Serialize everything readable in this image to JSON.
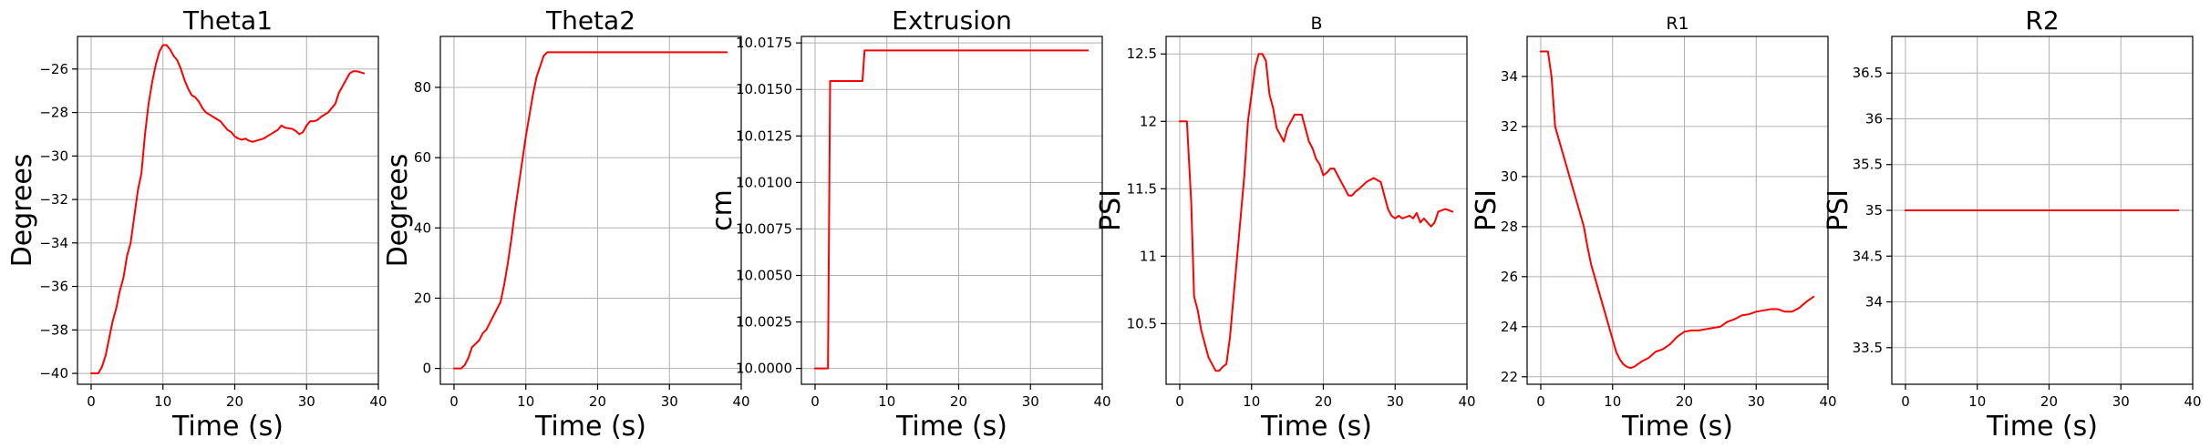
{
  "colors": {
    "line": "#ff0000",
    "grid": "#b0b0b0",
    "axes": "#000000"
  },
  "chart_data": [
    {
      "type": "line",
      "title": "Theta1",
      "xlabel": "Time (s)",
      "ylabel": "Degrees",
      "grid": true,
      "xlim": [
        -1.9,
        40
      ],
      "ylim": [
        -40.5,
        -24.5
      ],
      "xticks": [
        0,
        10,
        20,
        30,
        40
      ],
      "yticks": [
        -40,
        -38,
        -36,
        -34,
        -32,
        -30,
        -28,
        -26
      ],
      "series": [
        {
          "values": [
            [
              0,
              -40
            ],
            [
              1,
              -40
            ],
            [
              1.5,
              -39.7
            ],
            [
              2,
              -39.2
            ],
            [
              2.5,
              -38.4
            ],
            [
              3,
              -37.6
            ],
            [
              3.5,
              -37
            ],
            [
              4,
              -36.2
            ],
            [
              4.5,
              -35.6
            ],
            [
              5,
              -34.6
            ],
            [
              5.5,
              -34
            ],
            [
              6,
              -32.8
            ],
            [
              6.5,
              -31.6
            ],
            [
              7,
              -30.8
            ],
            [
              7.5,
              -29
            ],
            [
              8,
              -27.6
            ],
            [
              8.5,
              -26.6
            ],
            [
              9,
              -25.8
            ],
            [
              9.5,
              -25.2
            ],
            [
              10,
              -24.9
            ],
            [
              10.5,
              -24.9
            ],
            [
              11,
              -25.1
            ],
            [
              11.5,
              -25.4
            ],
            [
              12,
              -25.6
            ],
            [
              12.5,
              -26
            ],
            [
              13,
              -26.5
            ],
            [
              13.5,
              -26.9
            ],
            [
              14,
              -27.2
            ],
            [
              14.5,
              -27.3
            ],
            [
              15,
              -27.5
            ],
            [
              15.5,
              -27.8
            ],
            [
              16,
              -28
            ],
            [
              16.5,
              -28.1
            ],
            [
              17,
              -28.2
            ],
            [
              17.5,
              -28.3
            ],
            [
              18,
              -28.4
            ],
            [
              18.5,
              -28.6
            ],
            [
              19,
              -28.8
            ],
            [
              19.5,
              -28.9
            ],
            [
              20,
              -29.1
            ],
            [
              20.5,
              -29.2
            ],
            [
              21,
              -29.25
            ],
            [
              21.5,
              -29.2
            ],
            [
              22,
              -29.3
            ],
            [
              22.5,
              -29.35
            ],
            [
              23,
              -29.3
            ],
            [
              24,
              -29.2
            ],
            [
              25,
              -29.0
            ],
            [
              26,
              -28.8
            ],
            [
              26.5,
              -28.6
            ],
            [
              27,
              -28.7
            ],
            [
              28,
              -28.75
            ],
            [
              28.5,
              -28.85
            ],
            [
              29,
              -29
            ],
            [
              29.5,
              -28.9
            ],
            [
              30,
              -28.6
            ],
            [
              30.5,
              -28.4
            ],
            [
              31,
              -28.4
            ],
            [
              31.5,
              -28.35
            ],
            [
              32,
              -28.2
            ],
            [
              33,
              -28.0
            ],
            [
              34,
              -27.6
            ],
            [
              34.5,
              -27.1
            ],
            [
              35,
              -26.8
            ],
            [
              35.5,
              -26.5
            ],
            [
              36,
              -26.2
            ],
            [
              36.5,
              -26.1
            ],
            [
              37,
              -26.1
            ],
            [
              38,
              -26.2
            ]
          ]
        }
      ]
    },
    {
      "type": "line",
      "title": "Theta2",
      "xlabel": "Time (s)",
      "ylabel": "Degrees",
      "grid": true,
      "xlim": [
        -1.9,
        40
      ],
      "ylim": [
        -4.5,
        94.5
      ],
      "xticks": [
        0,
        10,
        20,
        30,
        40
      ],
      "yticks": [
        0,
        20,
        40,
        60,
        80
      ],
      "series": [
        {
          "values": [
            [
              0,
              0
            ],
            [
              1,
              0
            ],
            [
              1.5,
              1
            ],
            [
              2,
              3
            ],
            [
              2.5,
              6
            ],
            [
              3,
              7
            ],
            [
              3.5,
              8
            ],
            [
              4,
              10
            ],
            [
              4.5,
              11
            ],
            [
              5,
              13
            ],
            [
              5.5,
              15
            ],
            [
              6,
              17
            ],
            [
              6.5,
              19
            ],
            [
              7,
              24
            ],
            [
              7.5,
              30
            ],
            [
              8,
              37
            ],
            [
              8.5,
              45
            ],
            [
              9,
              52
            ],
            [
              9.5,
              59
            ],
            [
              10,
              66
            ],
            [
              10.5,
              72
            ],
            [
              11,
              78
            ],
            [
              11.5,
              83
            ],
            [
              12,
              86
            ],
            [
              12.5,
              89
            ],
            [
              13,
              90
            ],
            [
              38,
              90
            ]
          ]
        }
      ]
    },
    {
      "type": "line",
      "title": "Extrusion",
      "xlabel": "Time (s)",
      "ylabel": "cm",
      "grid": true,
      "xlim": [
        -1.9,
        40
      ],
      "ylim": [
        9.99915,
        10.01785
      ],
      "xticks": [
        0,
        10,
        20,
        30,
        40
      ],
      "yticks": [
        10.0,
        10.0025,
        10.005,
        10.0075,
        10.01,
        10.0125,
        10.015,
        10.0175
      ],
      "ytick_labels": [
        "10.0000",
        "10.0025",
        "10.0050",
        "10.0075",
        "10.0100",
        "10.0125",
        "10.0150",
        "10.0175"
      ],
      "series": [
        {
          "values": [
            [
              0,
              10.0
            ],
            [
              1.8,
              10.0
            ],
            [
              2.1,
              10.01545
            ],
            [
              6.6,
              10.01545
            ],
            [
              6.9,
              10.0171
            ],
            [
              38,
              10.0171
            ]
          ]
        }
      ]
    },
    {
      "type": "line",
      "title": "B",
      "xlabel": "Time (s)",
      "ylabel": "PSI",
      "grid": true,
      "xlim": [
        -1.9,
        40
      ],
      "ylim": [
        10.05,
        12.63
      ],
      "xticks": [
        0,
        10,
        20,
        30,
        40
      ],
      "yticks": [
        10.5,
        11.0,
        11.5,
        12.0,
        12.5
      ],
      "series": [
        {
          "values": [
            [
              0,
              12.0
            ],
            [
              0.5,
              12.0
            ],
            [
              1,
              12.0
            ],
            [
              1.3,
              11.7
            ],
            [
              1.6,
              11.4
            ],
            [
              2,
              10.7
            ],
            [
              2.5,
              10.6
            ],
            [
              3,
              10.45
            ],
            [
              3.5,
              10.35
            ],
            [
              4,
              10.25
            ],
            [
              4.5,
              10.2
            ],
            [
              5,
              10.15
            ],
            [
              5.5,
              10.15
            ],
            [
              6,
              10.18
            ],
            [
              6.5,
              10.2
            ],
            [
              7,
              10.4
            ],
            [
              7.5,
              10.7
            ],
            [
              8,
              11.0
            ],
            [
              8.5,
              11.3
            ],
            [
              9,
              11.6
            ],
            [
              9.5,
              12.0
            ],
            [
              10,
              12.2
            ],
            [
              10.5,
              12.4
            ],
            [
              11,
              12.5
            ],
            [
              11.5,
              12.5
            ],
            [
              12,
              12.45
            ],
            [
              12.5,
              12.2
            ],
            [
              13,
              12.1
            ],
            [
              13.5,
              11.95
            ],
            [
              14,
              11.9
            ],
            [
              14.5,
              11.85
            ],
            [
              15,
              11.95
            ],
            [
              15.5,
              12.0
            ],
            [
              16,
              12.05
            ],
            [
              16.5,
              12.05
            ],
            [
              17,
              12.05
            ],
            [
              17.5,
              11.95
            ],
            [
              18,
              11.85
            ],
            [
              18.5,
              11.8
            ],
            [
              19,
              11.72
            ],
            [
              19.5,
              11.68
            ],
            [
              20,
              11.6
            ],
            [
              20.5,
              11.62
            ],
            [
              21,
              11.65
            ],
            [
              21.5,
              11.65
            ],
            [
              22,
              11.6
            ],
            [
              22.5,
              11.55
            ],
            [
              23,
              11.5
            ],
            [
              23.5,
              11.45
            ],
            [
              24,
              11.45
            ],
            [
              24.5,
              11.48
            ],
            [
              25,
              11.5
            ],
            [
              26,
              11.55
            ],
            [
              27,
              11.58
            ],
            [
              28,
              11.55
            ],
            [
              28.5,
              11.45
            ],
            [
              29,
              11.35
            ],
            [
              29.5,
              11.3
            ],
            [
              30,
              11.28
            ],
            [
              30.5,
              11.3
            ],
            [
              31,
              11.28
            ],
            [
              32,
              11.3
            ],
            [
              32.5,
              11.28
            ],
            [
              33,
              11.32
            ],
            [
              33.5,
              11.25
            ],
            [
              34,
              11.28
            ],
            [
              34.5,
              11.25
            ],
            [
              35,
              11.22
            ],
            [
              35.5,
              11.25
            ],
            [
              36,
              11.33
            ],
            [
              37,
              11.35
            ],
            [
              38,
              11.33
            ]
          ]
        }
      ]
    },
    {
      "type": "line",
      "title": "R1",
      "xlabel": "Time (s)",
      "ylabel": "PSI",
      "grid": true,
      "xlim": [
        -1.9,
        40
      ],
      "ylim": [
        21.7,
        35.6
      ],
      "xticks": [
        0,
        10,
        20,
        30,
        40
      ],
      "yticks": [
        22,
        24,
        26,
        28,
        30,
        32,
        34
      ],
      "series": [
        {
          "values": [
            [
              0,
              35
            ],
            [
              1,
              35
            ],
            [
              1.5,
              34
            ],
            [
              2,
              32
            ],
            [
              2.5,
              31.5
            ],
            [
              3,
              31
            ],
            [
              3.5,
              30.5
            ],
            [
              4,
              30
            ],
            [
              4.5,
              29.5
            ],
            [
              5,
              29
            ],
            [
              5.5,
              28.5
            ],
            [
              6,
              28
            ],
            [
              6.5,
              27.2
            ],
            [
              7,
              26.5
            ],
            [
              7.5,
              26
            ],
            [
              8,
              25.5
            ],
            [
              8.5,
              25
            ],
            [
              9,
              24.5
            ],
            [
              9.5,
              24
            ],
            [
              10,
              23.5
            ],
            [
              10.5,
              23
            ],
            [
              11,
              22.7
            ],
            [
              11.5,
              22.5
            ],
            [
              12,
              22.4
            ],
            [
              12.5,
              22.35
            ],
            [
              13,
              22.4
            ],
            [
              13.5,
              22.5
            ],
            [
              14,
              22.6
            ],
            [
              15,
              22.75
            ],
            [
              16,
              23
            ],
            [
              17,
              23.1
            ],
            [
              18,
              23.3
            ],
            [
              19,
              23.6
            ],
            [
              20,
              23.8
            ],
            [
              21,
              23.85
            ],
            [
              22,
              23.85
            ],
            [
              23,
              23.9
            ],
            [
              24,
              23.95
            ],
            [
              25,
              24
            ],
            [
              26,
              24.2
            ],
            [
              27,
              24.3
            ],
            [
              28,
              24.45
            ],
            [
              29,
              24.5
            ],
            [
              30,
              24.6
            ],
            [
              31,
              24.65
            ],
            [
              32,
              24.7
            ],
            [
              33,
              24.7
            ],
            [
              34,
              24.6
            ],
            [
              35,
              24.6
            ],
            [
              36,
              24.75
            ],
            [
              37,
              25
            ],
            [
              38,
              25.2
            ]
          ]
        }
      ]
    },
    {
      "type": "line",
      "title": "R2",
      "xlabel": "Time (s)",
      "ylabel": "PSI",
      "grid": true,
      "xlim": [
        -1.9,
        40
      ],
      "ylim": [
        33.1,
        36.9
      ],
      "xticks": [
        0,
        10,
        20,
        30,
        40
      ],
      "yticks": [
        33.5,
        34.0,
        34.5,
        35.0,
        35.5,
        36.0,
        36.5
      ],
      "series": [
        {
          "values": [
            [
              0,
              35
            ],
            [
              38,
              35
            ]
          ]
        }
      ]
    }
  ]
}
